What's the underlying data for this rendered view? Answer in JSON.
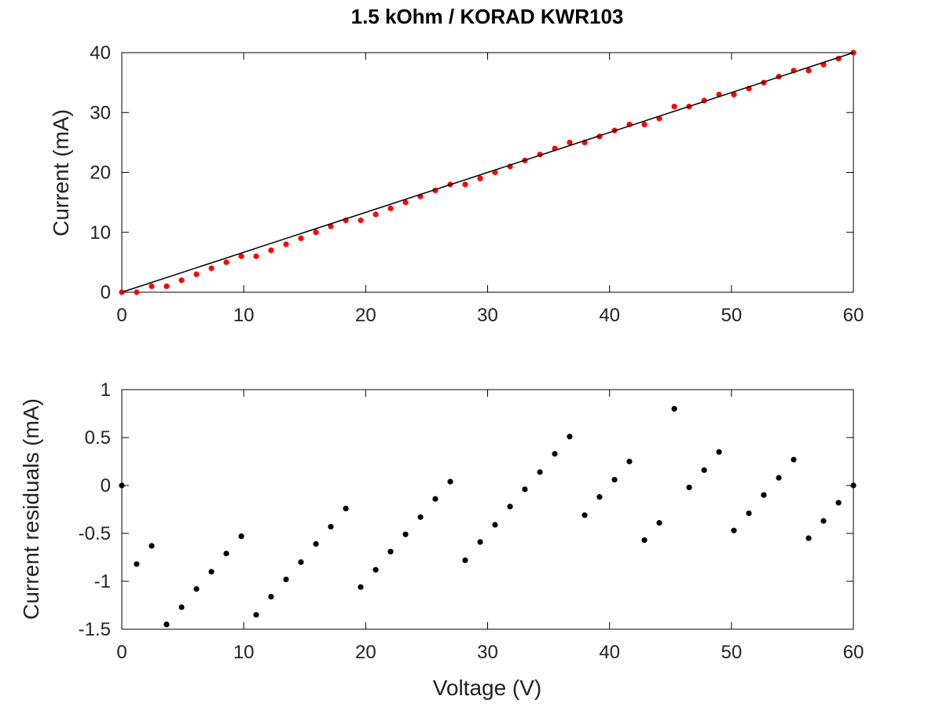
{
  "chart_data": [
    {
      "type": "scatter",
      "title": "1.5 kOhm / KORAD KWR103",
      "xlabel": "",
      "ylabel": "Current (mA)",
      "xlim": [
        0,
        60
      ],
      "ylim": [
        0,
        40
      ],
      "xticks": [
        "0",
        "10",
        "20",
        "30",
        "40",
        "50",
        "60"
      ],
      "yticks": [
        "0",
        "10",
        "20",
        "30",
        "40"
      ],
      "grid": false,
      "series": [
        {
          "kind": "points",
          "color": "#ff0000",
          "x": [
            0.0,
            1.22,
            2.45,
            3.67,
            4.9,
            6.12,
            7.35,
            8.57,
            9.8,
            11.02,
            12.24,
            13.47,
            14.69,
            15.92,
            17.14,
            18.37,
            19.59,
            20.82,
            22.04,
            23.27,
            24.49,
            25.71,
            26.94,
            28.16,
            29.39,
            30.61,
            31.84,
            33.06,
            34.29,
            35.51,
            36.73,
            37.96,
            39.18,
            40.41,
            41.63,
            42.86,
            44.08,
            45.31,
            46.53,
            47.76,
            48.98,
            50.2,
            51.43,
            52.65,
            53.88,
            55.1,
            56.33,
            57.55,
            58.78,
            60.0
          ],
          "y": [
            0,
            0,
            1,
            1,
            2,
            3,
            4,
            5,
            6,
            6,
            7,
            8,
            9,
            10,
            11,
            12,
            12,
            13,
            14,
            15,
            16,
            17,
            18,
            18,
            19,
            20,
            21,
            22,
            23,
            24,
            25,
            25,
            26,
            27,
            28,
            28,
            29,
            31,
            31,
            32,
            33,
            33,
            34,
            35,
            36,
            37,
            37,
            38,
            39,
            40
          ]
        },
        {
          "kind": "fit-line",
          "color": "#000000",
          "x": [
            0,
            60
          ],
          "y": [
            0,
            40
          ]
        }
      ]
    },
    {
      "type": "scatter",
      "title": "",
      "xlabel": "Voltage (V)",
      "ylabel": "Current residuals (mA)",
      "xlim": [
        0,
        60
      ],
      "ylim": [
        -1.5,
        1
      ],
      "xticks": [
        "0",
        "10",
        "20",
        "30",
        "40",
        "50",
        "60"
      ],
      "yticks": [
        "-1.5",
        "-1",
        "-0.5",
        "0",
        "0.5",
        "1"
      ],
      "grid": false,
      "series": [
        {
          "kind": "points",
          "color": "#000000",
          "x": [
            0.0,
            1.22,
            2.45,
            3.67,
            4.9,
            6.12,
            7.35,
            8.57,
            9.8,
            11.02,
            12.24,
            13.47,
            14.69,
            15.92,
            17.14,
            18.37,
            19.59,
            20.82,
            22.04,
            23.27,
            24.49,
            25.71,
            26.94,
            28.16,
            29.39,
            30.61,
            31.84,
            33.06,
            34.29,
            35.51,
            36.73,
            37.96,
            39.18,
            40.41,
            41.63,
            42.86,
            44.08,
            45.31,
            46.53,
            47.76,
            48.98,
            50.2,
            51.43,
            52.65,
            53.88,
            55.1,
            56.33,
            57.55,
            58.78,
            60.0
          ],
          "y": [
            0.0,
            -0.82,
            -0.63,
            -1.45,
            -1.27,
            -1.08,
            -0.9,
            -0.71,
            -0.53,
            -1.35,
            -1.16,
            -0.98,
            -0.8,
            -0.61,
            -0.43,
            -0.24,
            -1.06,
            -0.88,
            -0.69,
            -0.51,
            -0.33,
            -0.14,
            0.04,
            -0.78,
            -0.59,
            -0.41,
            -0.22,
            -0.04,
            0.14,
            0.33,
            0.51,
            -0.31,
            -0.12,
            0.06,
            0.25,
            -0.57,
            -0.39,
            0.8,
            -0.02,
            0.16,
            0.35,
            -0.47,
            -0.29,
            -0.1,
            0.08,
            0.27,
            -0.55,
            -0.37,
            -0.18,
            0.0
          ]
        }
      ]
    }
  ]
}
